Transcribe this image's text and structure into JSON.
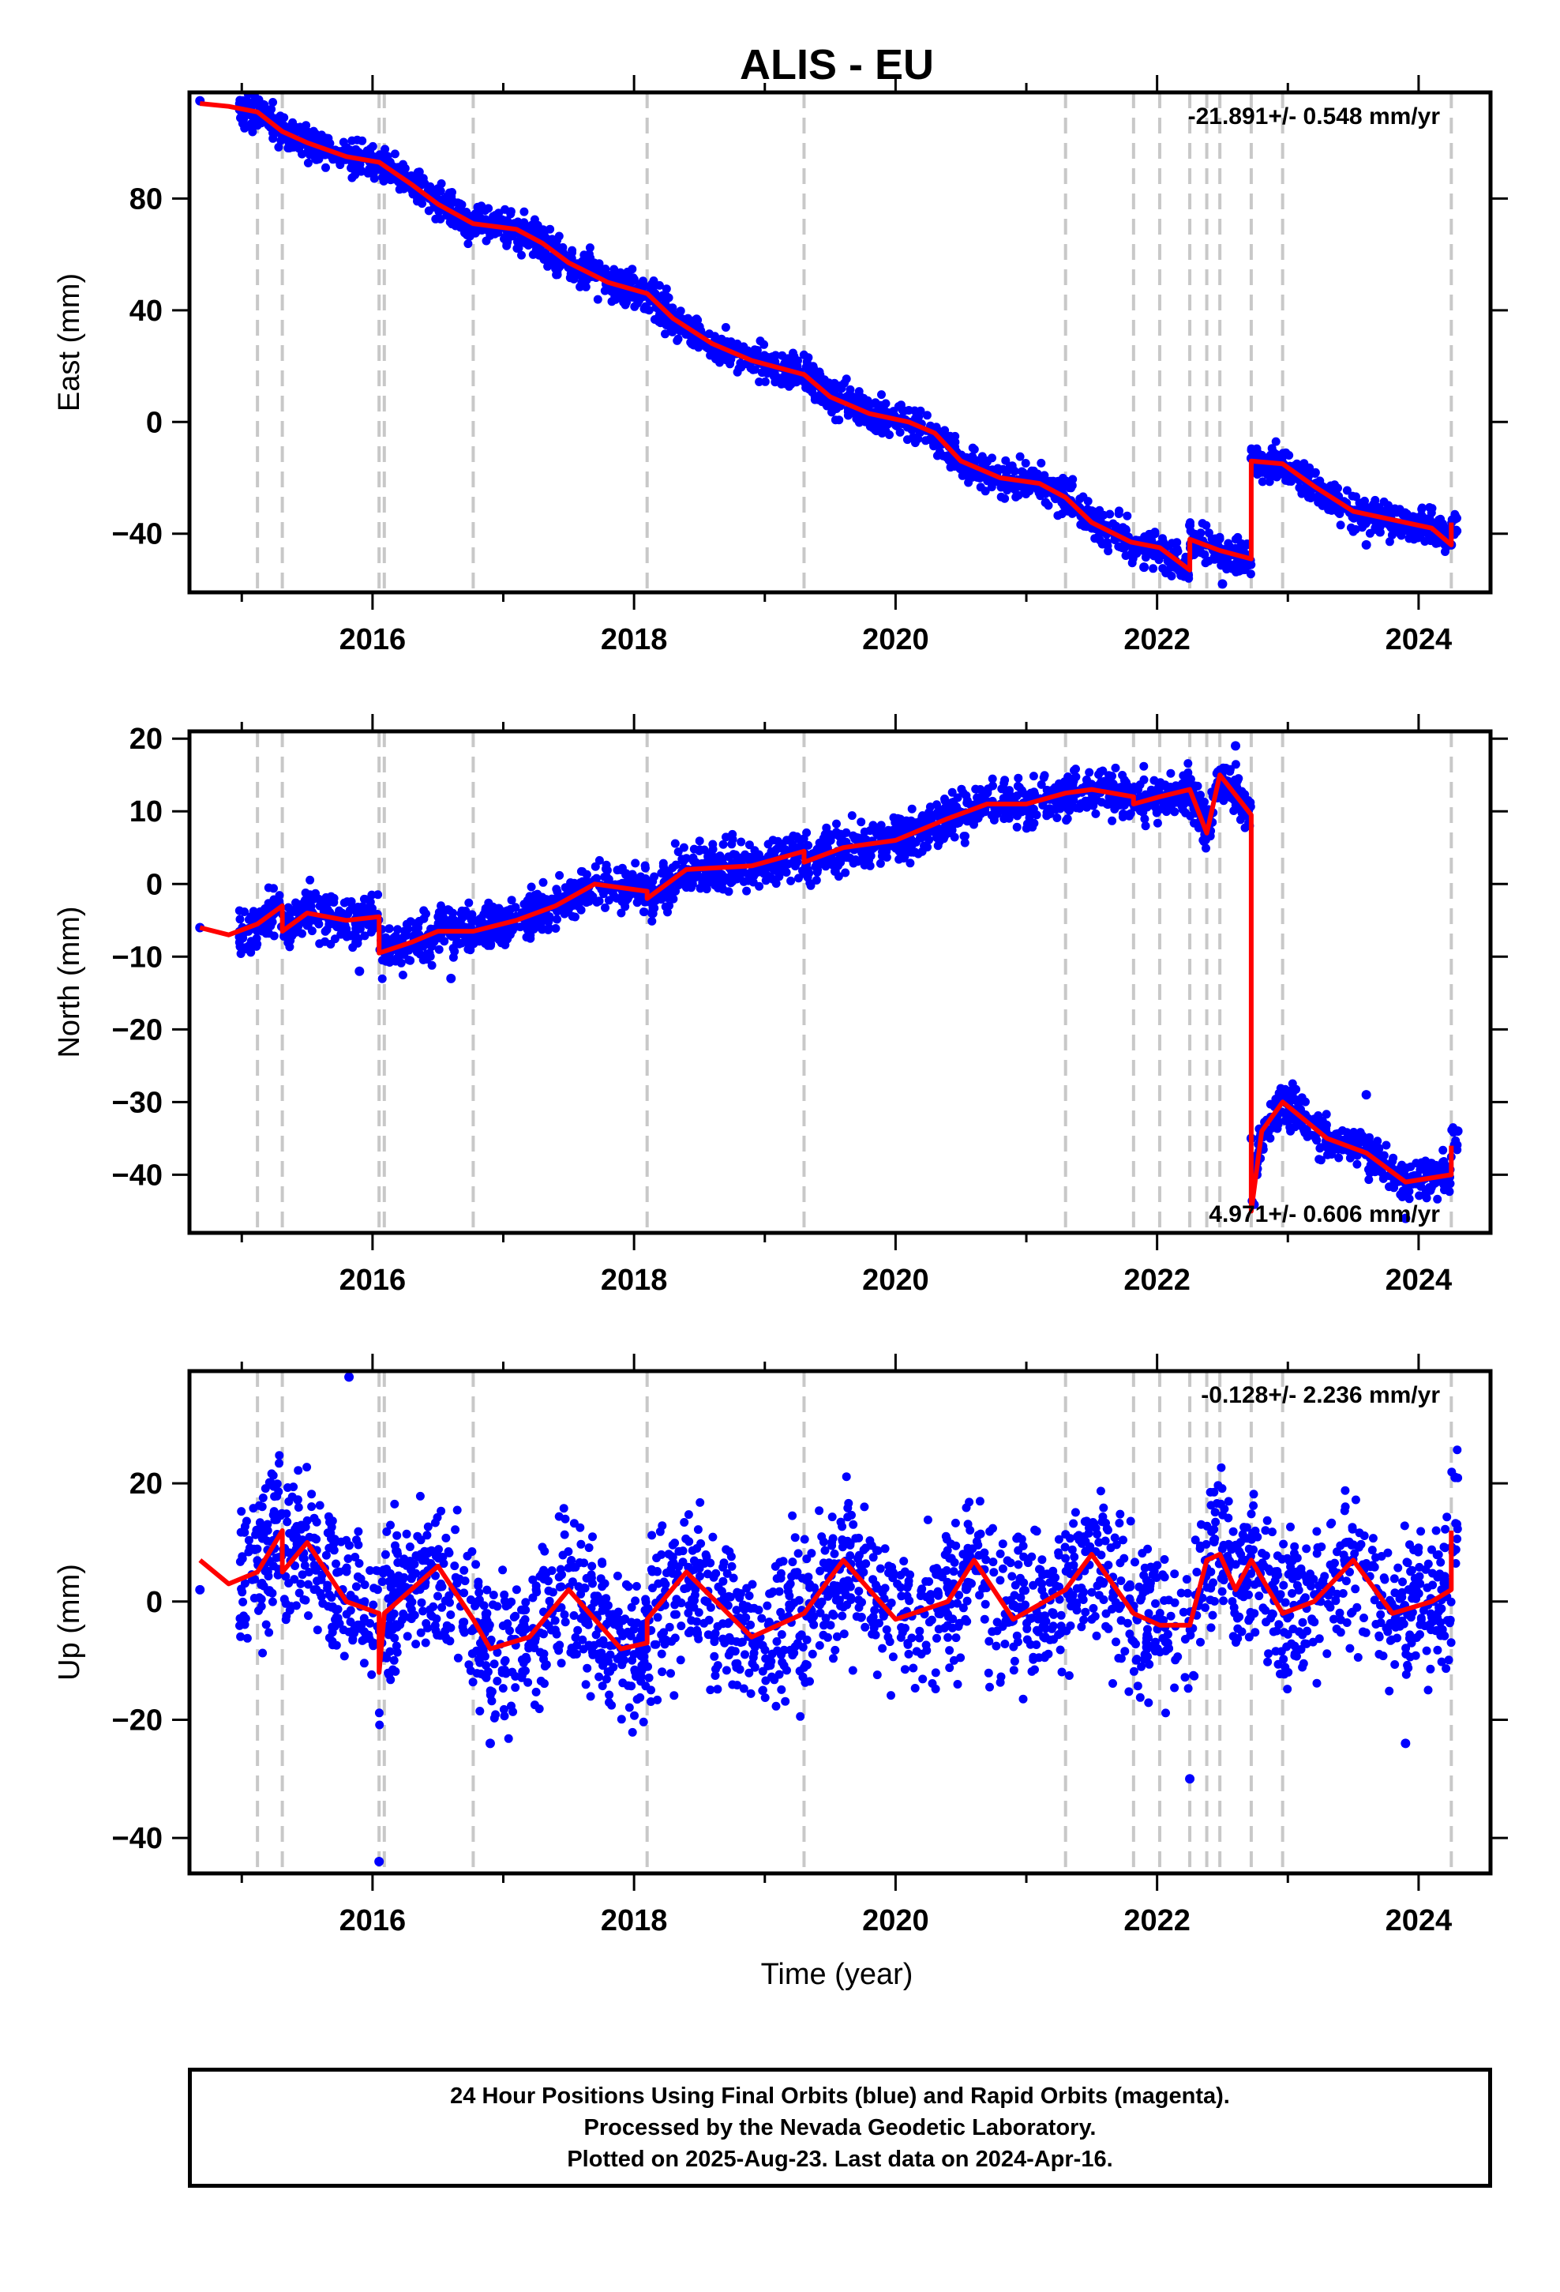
{
  "title": "ALIS - EU",
  "x_axis_label": "Time (year)",
  "footer": {
    "line1": "24 Hour Positions Using Final Orbits (blue) and Rapid Orbits (magenta).",
    "line2": "Processed by the Nevada Geodetic Laboratory.",
    "line3": "Plotted on 2025-Aug-23. Last data on 2024-Apr-16."
  },
  "colors": {
    "points": "#0000ff",
    "model": "#ff0000",
    "steps": "#c8c8c8",
    "frame": "#000000"
  },
  "chart_data": [
    {
      "type": "scatter",
      "ylabel": "East (mm)",
      "xlabel": "",
      "xlim": [
        2014.6,
        2024.55
      ],
      "ylim": [
        -61,
        118
      ],
      "xticks": [
        2016,
        2018,
        2020,
        2022,
        2024
      ],
      "yticks": [
        -40,
        0,
        40,
        80
      ],
      "rate_label": "-21.891+/- 0.548 mm/yr",
      "rate_position": "top-right",
      "step_epochs": [
        2015.12,
        2015.31,
        2016.05,
        2016.09,
        2016.77,
        2018.1,
        2019.3,
        2021.3,
        2021.82,
        2022.02,
        2022.25,
        2022.38,
        2022.48,
        2022.72,
        2022.96,
        2024.25
      ],
      "model": [
        [
          2014.68,
          114
        ],
        [
          2014.9,
          113
        ],
        [
          2015.12,
          111
        ],
        [
          2015.31,
          104
        ],
        [
          2015.5,
          100
        ],
        [
          2015.8,
          95
        ],
        [
          2016.05,
          93
        ],
        [
          2016.3,
          85
        ],
        [
          2016.5,
          78
        ],
        [
          2016.77,
          71
        ],
        [
          2017.1,
          69
        ],
        [
          2017.3,
          64
        ],
        [
          2017.5,
          57
        ],
        [
          2017.8,
          50
        ],
        [
          2018.1,
          46
        ],
        [
          2018.3,
          37
        ],
        [
          2018.6,
          28
        ],
        [
          2018.9,
          22
        ],
        [
          2019.3,
          17
        ],
        [
          2019.5,
          9
        ],
        [
          2019.8,
          3
        ],
        [
          2020.1,
          0
        ],
        [
          2020.3,
          -4
        ],
        [
          2020.5,
          -14
        ],
        [
          2020.8,
          -20
        ],
        [
          2021.1,
          -22
        ],
        [
          2021.3,
          -27
        ],
        [
          2021.5,
          -36
        ],
        [
          2021.8,
          -43
        ],
        [
          2022.02,
          -45
        ],
        [
          2022.25,
          -53
        ],
        [
          2022.25,
          -42
        ],
        [
          2022.48,
          -46
        ],
        [
          2022.72,
          -49
        ],
        [
          2022.72,
          -14
        ],
        [
          2022.96,
          -15
        ],
        [
          2023.2,
          -23
        ],
        [
          2023.5,
          -32
        ],
        [
          2023.8,
          -35
        ],
        [
          2024.1,
          -38
        ],
        [
          2024.25,
          -44
        ],
        [
          2024.25,
          -36
        ]
      ],
      "points": [
        [
          2014.68,
          115
        ],
        [
          2024.25,
          -44
        ],
        [
          2022.25,
          -37
        ],
        [
          2022.72,
          -13
        ],
        [
          2023.6,
          -44
        ],
        [
          2022.5,
          -58
        ],
        [
          2021.9,
          -52
        ]
      ],
      "cloud": {
        "start": 2014.98,
        "end": 2024.3,
        "spread": 3.2,
        "n": 2400
      }
    },
    {
      "type": "scatter",
      "ylabel": "North (mm)",
      "xlabel": "",
      "xlim": [
        2014.6,
        2024.55
      ],
      "ylim": [
        -48,
        21
      ],
      "xticks": [
        2016,
        2018,
        2020,
        2022,
        2024
      ],
      "yticks": [
        -40,
        -30,
        -20,
        -10,
        0,
        10,
        20
      ],
      "rate_label": "4.971+/- 0.606 mm/yr",
      "rate_position": "bottom-right",
      "step_epochs": [
        2015.12,
        2015.31,
        2016.05,
        2016.09,
        2016.77,
        2018.1,
        2019.3,
        2021.3,
        2021.82,
        2022.02,
        2022.25,
        2022.38,
        2022.48,
        2022.72,
        2022.96,
        2024.25
      ],
      "model": [
        [
          2014.68,
          -6
        ],
        [
          2014.9,
          -7
        ],
        [
          2015.12,
          -5.5
        ],
        [
          2015.31,
          -3
        ],
        [
          2015.31,
          -6.5
        ],
        [
          2015.5,
          -4
        ],
        [
          2015.8,
          -5
        ],
        [
          2016.05,
          -4.5
        ],
        [
          2016.05,
          -9.5
        ],
        [
          2016.3,
          -8
        ],
        [
          2016.5,
          -6.5
        ],
        [
          2016.77,
          -6.5
        ],
        [
          2017.1,
          -5
        ],
        [
          2017.4,
          -3
        ],
        [
          2017.7,
          0
        ],
        [
          2018.1,
          -1
        ],
        [
          2018.1,
          -2
        ],
        [
          2018.4,
          2
        ],
        [
          2018.9,
          2.5
        ],
        [
          2019.3,
          4.5
        ],
        [
          2019.3,
          3
        ],
        [
          2019.6,
          5
        ],
        [
          2020.0,
          6
        ],
        [
          2020.4,
          9
        ],
        [
          2020.7,
          11
        ],
        [
          2021.0,
          11
        ],
        [
          2021.3,
          12.5
        ],
        [
          2021.5,
          13
        ],
        [
          2021.82,
          12
        ],
        [
          2021.82,
          11
        ],
        [
          2022.02,
          12
        ],
        [
          2022.25,
          13
        ],
        [
          2022.38,
          7
        ],
        [
          2022.48,
          15
        ],
        [
          2022.72,
          9.5
        ],
        [
          2022.72,
          -45
        ],
        [
          2022.8,
          -34
        ],
        [
          2022.96,
          -30
        ],
        [
          2023.3,
          -35
        ],
        [
          2023.6,
          -37
        ],
        [
          2023.9,
          -41
        ],
        [
          2024.25,
          -40
        ],
        [
          2024.25,
          -36
        ]
      ],
      "points": [
        [
          2014.68,
          -6
        ],
        [
          2022.6,
          19
        ],
        [
          2022.72,
          -35
        ],
        [
          2023.9,
          -46
        ],
        [
          2024.3,
          -34
        ],
        [
          2023.6,
          -29
        ],
        [
          2016.6,
          -13
        ],
        [
          2015.9,
          -12
        ]
      ],
      "cloud": {
        "start": 2014.98,
        "end": 2024.3,
        "spread": 1.6,
        "n": 2400
      }
    },
    {
      "type": "scatter",
      "ylabel": "Up (mm)",
      "xlabel": "Time (year)",
      "xlim": [
        2014.6,
        2024.55
      ],
      "ylim": [
        -46,
        39
      ],
      "xticks": [
        2016,
        2018,
        2020,
        2022,
        2024
      ],
      "yticks": [
        -40,
        -20,
        0,
        20
      ],
      "rate_label": "-0.128+/- 2.236 mm/yr",
      "rate_position": "top-right",
      "step_epochs": [
        2015.12,
        2015.31,
        2016.05,
        2016.09,
        2016.77,
        2018.1,
        2019.3,
        2021.3,
        2021.82,
        2022.02,
        2022.25,
        2022.38,
        2022.48,
        2022.72,
        2022.96,
        2024.25
      ],
      "model": [
        [
          2014.68,
          7
        ],
        [
          2014.9,
          3
        ],
        [
          2015.12,
          5
        ],
        [
          2015.31,
          12
        ],
        [
          2015.31,
          5
        ],
        [
          2015.5,
          10
        ],
        [
          2015.8,
          0
        ],
        [
          2016.05,
          -2
        ],
        [
          2016.05,
          -12
        ],
        [
          2016.09,
          -2
        ],
        [
          2016.5,
          6
        ],
        [
          2016.77,
          -3
        ],
        [
          2016.9,
          -8
        ],
        [
          2017.2,
          -6
        ],
        [
          2017.5,
          2
        ],
        [
          2017.9,
          -8
        ],
        [
          2018.1,
          -7
        ],
        [
          2018.1,
          -3
        ],
        [
          2018.4,
          5
        ],
        [
          2018.9,
          -6
        ],
        [
          2019.3,
          -2
        ],
        [
          2019.6,
          7
        ],
        [
          2020.0,
          -3
        ],
        [
          2020.4,
          0
        ],
        [
          2020.6,
          7
        ],
        [
          2020.9,
          -3
        ],
        [
          2021.3,
          2
        ],
        [
          2021.5,
          8
        ],
        [
          2021.82,
          -2
        ],
        [
          2022.02,
          -4
        ],
        [
          2022.25,
          -4
        ],
        [
          2022.38,
          7
        ],
        [
          2022.48,
          8
        ],
        [
          2022.6,
          2
        ],
        [
          2022.72,
          7
        ],
        [
          2022.96,
          -2
        ],
        [
          2023.2,
          0
        ],
        [
          2023.5,
          7
        ],
        [
          2023.8,
          -2
        ],
        [
          2024.1,
          0
        ],
        [
          2024.25,
          2
        ],
        [
          2024.25,
          12
        ]
      ],
      "points": [
        [
          2015.82,
          38
        ],
        [
          2016.05,
          -44
        ],
        [
          2022.25,
          -30
        ],
        [
          2014.68,
          2
        ],
        [
          2024.28,
          21
        ],
        [
          2023.9,
          -24
        ],
        [
          2016.9,
          -24
        ]
      ],
      "cloud": {
        "start": 2014.98,
        "end": 2024.3,
        "spread": 6.5,
        "n": 2300
      }
    }
  ]
}
